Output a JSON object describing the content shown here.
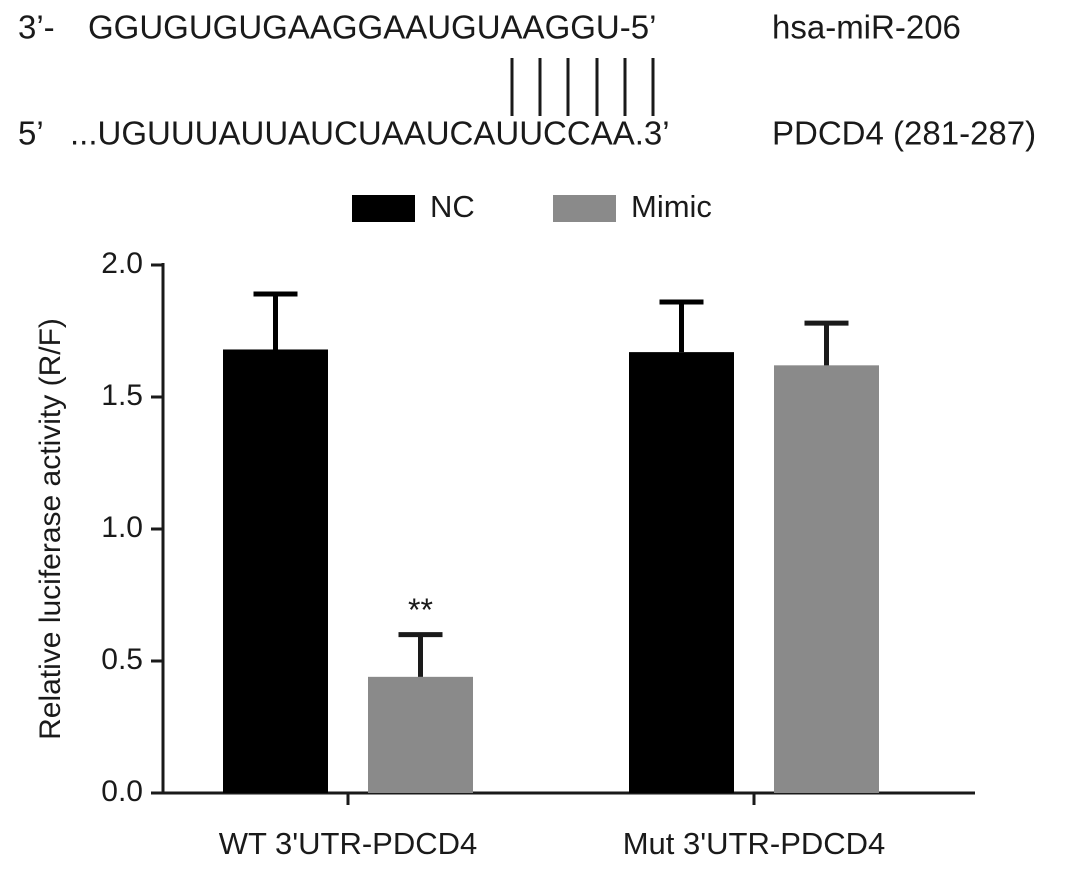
{
  "alignment": {
    "mirna_prefix": "3’-",
    "mirna_sequence": "GGUGUGUGAAGGAAUGUAAGGU-5’",
    "mirna_name": "hsa-miR-206",
    "target_prefix": "5’",
    "target_sequence": "...UGUUUAUUAUCUAAUCAUUCCAA.3’",
    "target_name": "PDCD4 (281-287)"
  },
  "chart_data": {
    "type": "bar",
    "ylabel": "Relative luciferase activity (R/F)",
    "categories": [
      "WT 3'UTR-PDCD4",
      "Mut 3'UTR-PDCD4"
    ],
    "series": [
      {
        "name": "NC",
        "color": "#000000",
        "values": [
          1.68,
          1.67
        ],
        "errors": [
          0.21,
          0.19
        ]
      },
      {
        "name": "Mimic",
        "color": "#8a8a8a",
        "values": [
          0.44,
          1.62
        ],
        "errors": [
          0.16,
          0.16
        ]
      }
    ],
    "annotations": [
      "**"
    ],
    "ylim": [
      0,
      2
    ],
    "yticks": [
      {
        "value": 0,
        "label": "0.0"
      },
      0.5,
      {
        "value": 1,
        "label": "1.0"
      },
      1.5,
      {
        "value": 2,
        "label": "2.0"
      }
    ],
    "grid": false,
    "legend": "top"
  }
}
